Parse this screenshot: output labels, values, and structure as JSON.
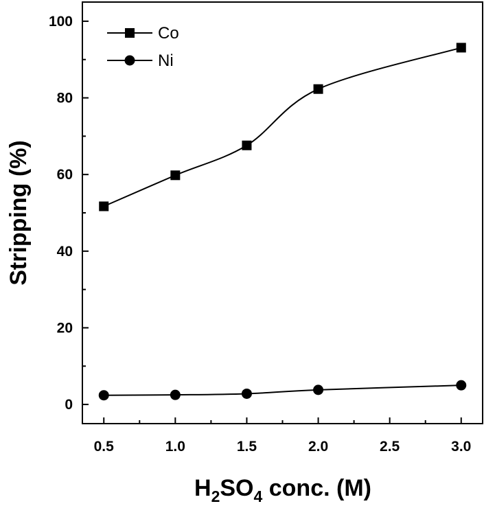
{
  "chart_data": {
    "type": "line",
    "title": "",
    "xlabel": "H2SO4 conc. (M)",
    "xlabel_parts": {
      "h": "H",
      "sub1": "2",
      "so": "SO",
      "sub2": "4",
      "rest": " conc. (M)"
    },
    "ylabel": "Stripping (%)",
    "xlim": [
      0.35,
      3.15
    ],
    "ylim": [
      -5,
      105
    ],
    "x_ticks": [
      0.5,
      1.0,
      1.5,
      2.0,
      2.5,
      3.0
    ],
    "x_tick_labels": [
      "0.5",
      "1.0",
      "1.5",
      "2.0",
      "2.5",
      "3.0"
    ],
    "y_ticks": [
      0,
      20,
      40,
      60,
      80,
      100
    ],
    "y_tick_labels": [
      "0",
      "20",
      "40",
      "60",
      "80",
      "100"
    ],
    "grid": false,
    "legend_position": "top-left",
    "series": [
      {
        "name": "Co",
        "marker": "square",
        "x": [
          0.5,
          1.0,
          1.5,
          2.0,
          3.0
        ],
        "y": [
          51.7,
          59.8,
          67.6,
          82.3,
          93.1
        ]
      },
      {
        "name": "Ni",
        "marker": "circle",
        "x": [
          0.5,
          1.0,
          1.5,
          2.0,
          3.0
        ],
        "y": [
          2.4,
          2.5,
          2.8,
          3.8,
          5.0
        ]
      }
    ]
  }
}
